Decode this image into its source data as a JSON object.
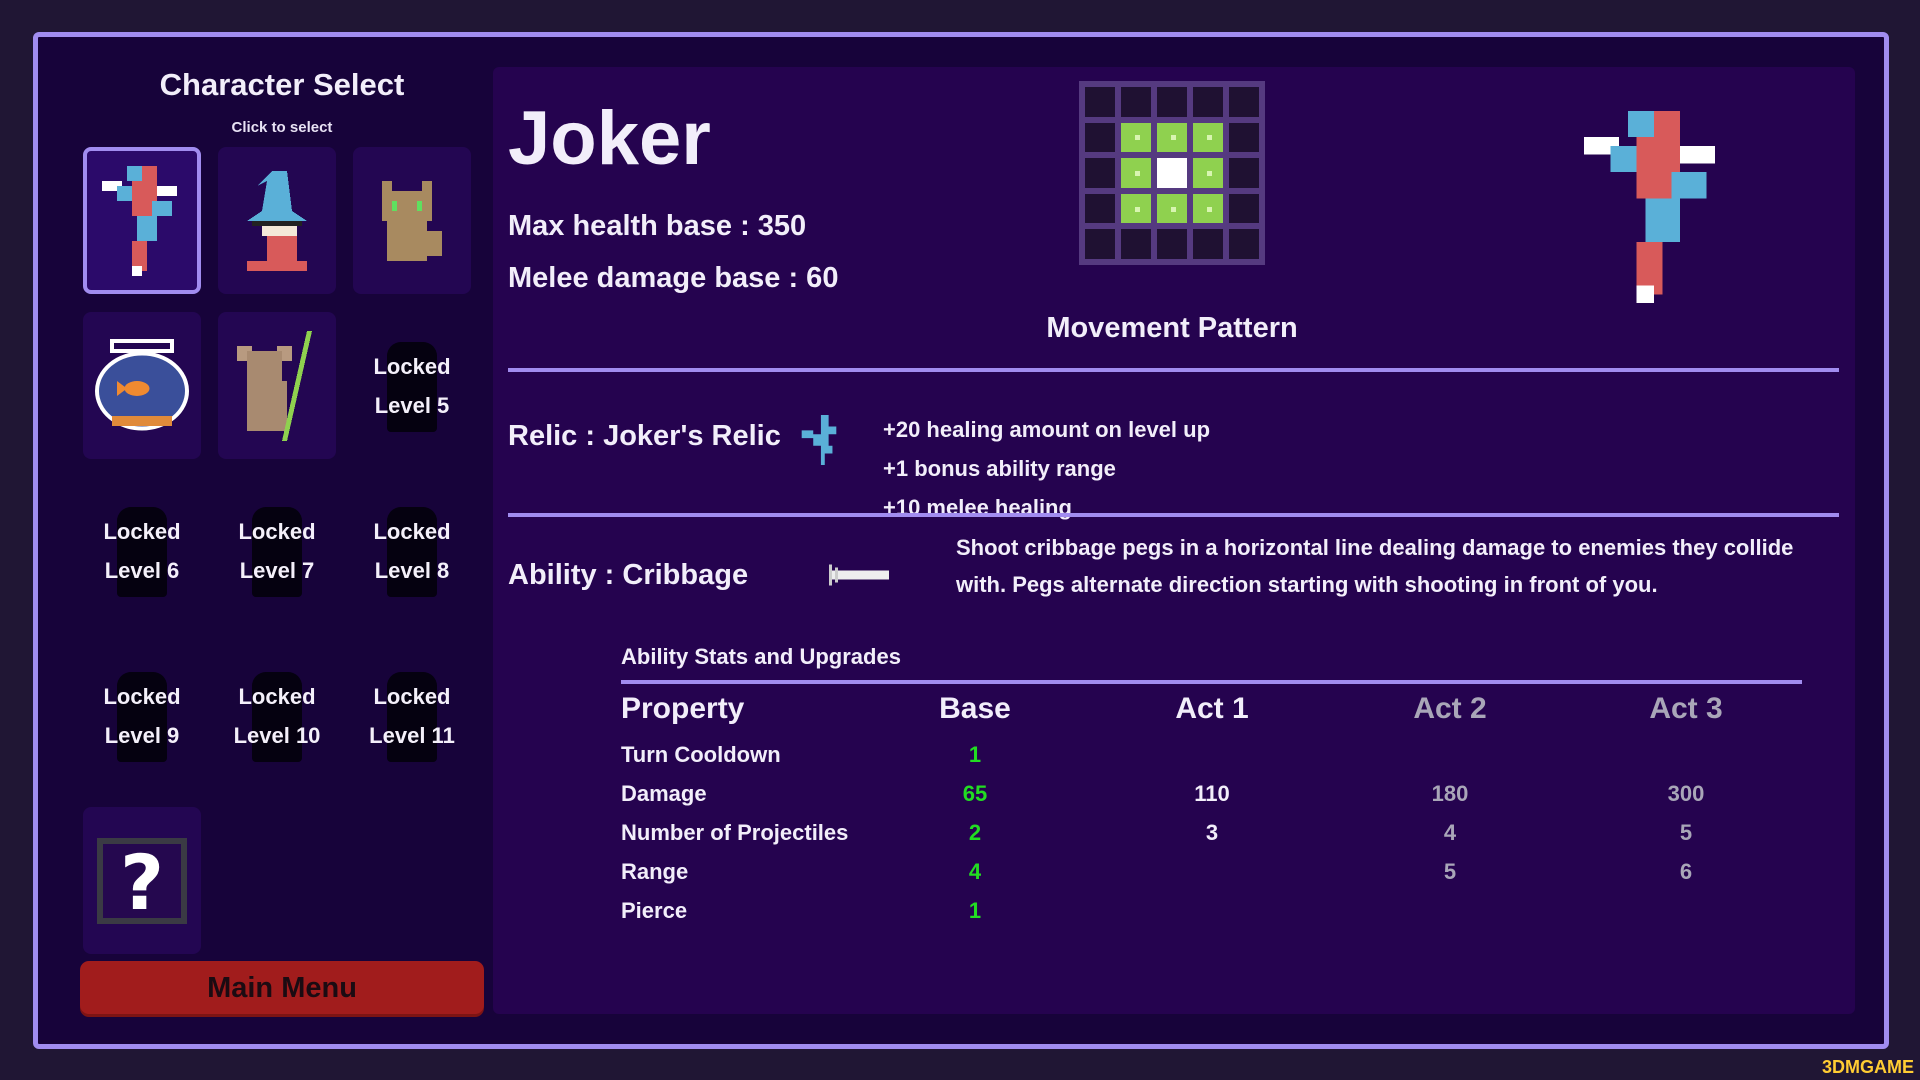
{
  "left": {
    "title": "Character Select",
    "subtitle": "Click to select",
    "characters": [
      {
        "name": "joker",
        "selected": true
      },
      {
        "name": "wizard"
      },
      {
        "name": "cat"
      },
      {
        "name": "fishbowl"
      },
      {
        "name": "koala"
      },
      {
        "locked": "Locked",
        "level": "Level 5"
      },
      {
        "locked": "Locked",
        "level": "Level 6"
      },
      {
        "locked": "Locked",
        "level": "Level 7"
      },
      {
        "locked": "Locked",
        "level": "Level 8"
      },
      {
        "locked": "Locked",
        "level": "Level 9"
      },
      {
        "locked": "Locked",
        "level": "Level 10"
      },
      {
        "locked": "Locked",
        "level": "Level 11"
      },
      {
        "name": "random"
      }
    ],
    "main_menu": "Main Menu"
  },
  "detail": {
    "name": "Joker",
    "max_health": "Max health base : 350",
    "melee_damage": "Melee damage base : 60",
    "movement_label": "Movement Pattern",
    "movement_pattern": [
      [
        0,
        0,
        0,
        0,
        0
      ],
      [
        0,
        1,
        1,
        1,
        0
      ],
      [
        0,
        1,
        2,
        1,
        0
      ],
      [
        0,
        1,
        1,
        1,
        0
      ],
      [
        0,
        0,
        0,
        0,
        0
      ]
    ],
    "relic": "Relic : Joker's Relic",
    "relic_bonuses": [
      "+20 healing amount on level up",
      "+1 bonus ability range",
      "+10 melee healing"
    ],
    "ability": "Ability : Cribbage",
    "ability_desc": "Shoot cribbage pegs in a horizontal line dealing damage to enemies they collide with. Pegs alternate direction starting with shooting in front of you.",
    "stats_label": "Ability Stats and Upgrades",
    "headers": [
      "Property",
      "Base",
      "Act 1",
      "Act 2",
      "Act 3"
    ],
    "rows": [
      [
        "Turn Cooldown",
        "1",
        "",
        "",
        ""
      ],
      [
        "Damage",
        "65",
        "110",
        "180",
        "300"
      ],
      [
        "Number of Projectiles",
        "2",
        "3",
        "4",
        "5"
      ],
      [
        "Range",
        "4",
        "",
        "5",
        "6"
      ],
      [
        "Pierce",
        "1",
        "",
        "",
        ""
      ]
    ]
  },
  "colors": {
    "accent": "#a18cf0",
    "base_value": "#22dd22",
    "future_value": "#a9a6b8",
    "button": "#a11c1c"
  },
  "watermark": "3DMGAME"
}
